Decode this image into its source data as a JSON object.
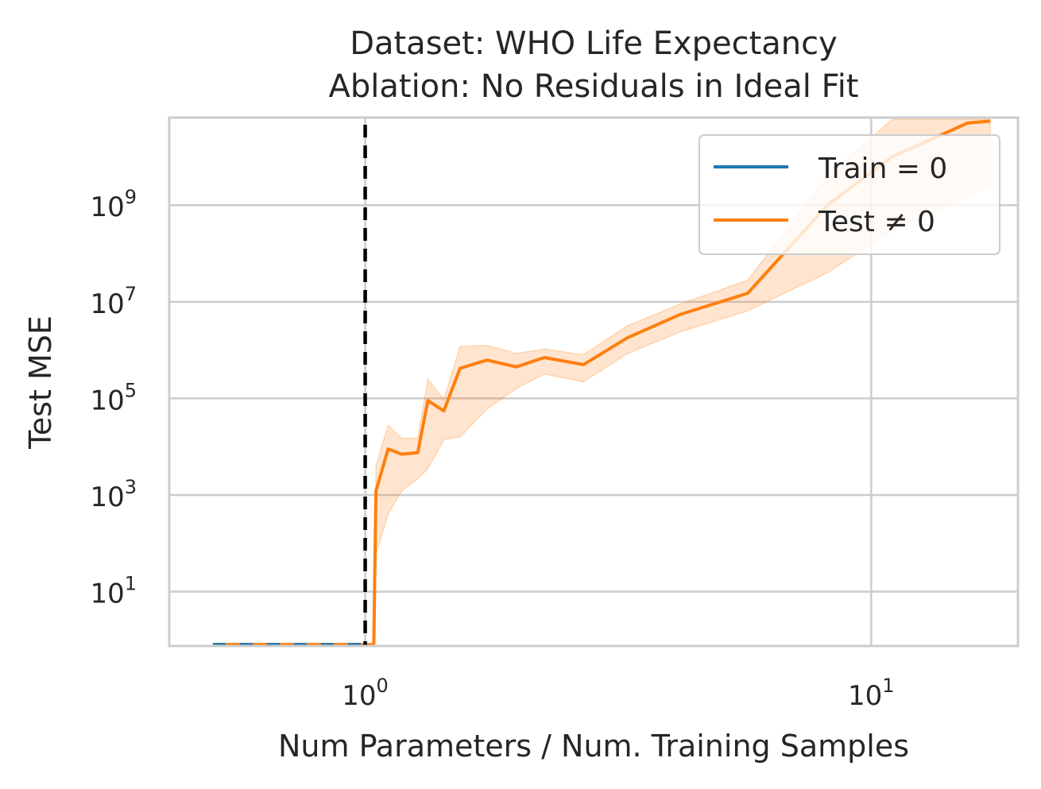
{
  "chart_data": {
    "type": "line",
    "title_line1": "Dataset: WHO Life Expectancy",
    "title_line2": "Ablation: No Residuals in Ideal Fit",
    "xlabel": "Num Parameters / Num. Training Samples",
    "ylabel": "Test MSE",
    "xscale": "log",
    "yscale": "log",
    "xlim": [
      0.41,
      19.5
    ],
    "ylim": [
      0.75,
      65000000000.0
    ],
    "grid": true,
    "legend_position": "top-right",
    "interpolation_threshold": 1.0,
    "x_ticks": [
      {
        "base": "10",
        "exp": "0",
        "value": 1
      },
      {
        "base": "10",
        "exp": "1",
        "value": 10
      }
    ],
    "y_ticks": [
      {
        "base": "10",
        "exp": "1",
        "value": 10
      },
      {
        "base": "10",
        "exp": "3",
        "value": 1000
      },
      {
        "base": "10",
        "exp": "5",
        "value": 100000
      },
      {
        "base": "10",
        "exp": "7",
        "value": 10000000
      },
      {
        "base": "10",
        "exp": "9",
        "value": 1000000000
      }
    ],
    "series": [
      {
        "name": "Train = 0",
        "color": "#1f77b4",
        "x": [
          0.5,
          0.55,
          0.6,
          0.65,
          0.7,
          0.75,
          0.8,
          0.85,
          0.9,
          0.95,
          0.98
        ],
        "y": [
          0.8,
          0.8,
          0.8,
          0.8,
          0.8,
          0.8,
          0.8,
          0.8,
          0.8,
          0.8,
          0.8
        ]
      },
      {
        "name": "Test ≠ 0",
        "color": "#ff7f0e",
        "x": [
          0.5,
          0.55,
          0.6,
          0.65,
          0.7,
          0.75,
          0.8,
          0.85,
          0.9,
          0.95,
          1.0,
          1.02,
          1.04,
          1.05,
          1.11,
          1.18,
          1.27,
          1.33,
          1.43,
          1.54,
          1.74,
          1.99,
          2.26,
          2.7,
          3.3,
          4.2,
          5.7,
          8.2,
          11.0,
          15.5,
          17.2
        ],
        "y": [
          0.8,
          0.8,
          0.8,
          0.8,
          0.8,
          0.8,
          0.8,
          0.8,
          0.8,
          0.8,
          0.8,
          0.8,
          0.8,
          1200,
          9000,
          7000,
          7500,
          90000,
          55000,
          420000,
          620000,
          450000,
          700000,
          500000,
          1800000,
          5500000,
          15000000,
          1000000000,
          10000000000,
          50000000000,
          55000000000
        ],
        "y_low": [
          0.8,
          0.8,
          0.8,
          0.8,
          0.8,
          0.8,
          0.8,
          0.8,
          0.8,
          0.8,
          0.8,
          0.8,
          0.8,
          60,
          400,
          1200,
          2200,
          3500,
          14000,
          16000,
          60000,
          160000,
          320000,
          220000,
          850000,
          2400000,
          6500000,
          40000000,
          300000000,
          1500000000,
          2500000000
        ],
        "y_high": [
          0.8,
          0.8,
          0.8,
          0.8,
          0.8,
          0.8,
          0.8,
          0.8,
          0.8,
          0.8,
          0.8,
          0.8,
          0.8,
          4000,
          28000,
          15000,
          15000,
          250000,
          95000,
          1200000,
          1250000,
          850000,
          1050000,
          800000,
          3200000,
          9000000,
          28000000,
          4000000000,
          60000000000,
          60000000000,
          60000000000
        ]
      }
    ]
  }
}
